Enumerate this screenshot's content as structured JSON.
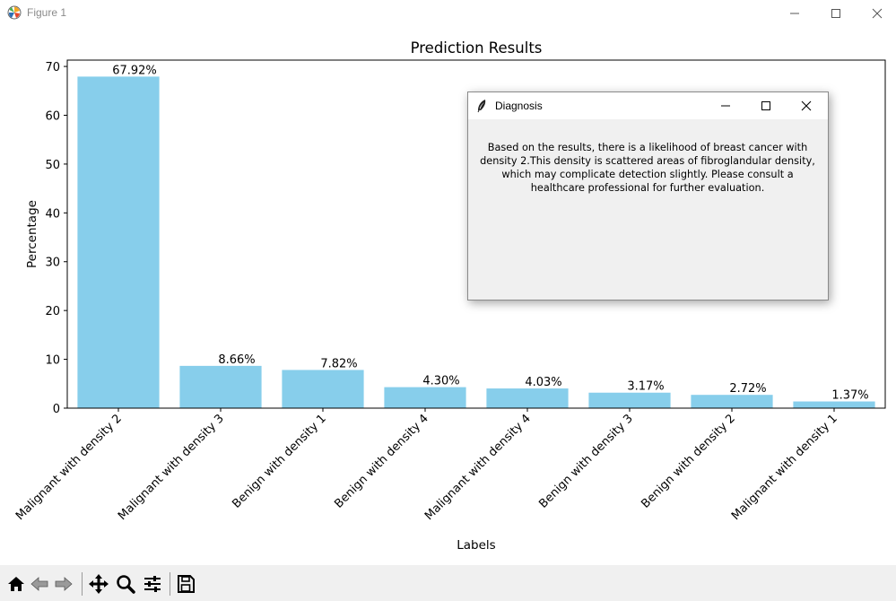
{
  "window": {
    "title": "Figure 1"
  },
  "chart_data": {
    "type": "bar",
    "title": "Prediction Results",
    "xlabel": "Labels",
    "ylabel": "Percentage",
    "categories": [
      "Malignant with density 2",
      "Malignant with density 3",
      "Benign with density 1",
      "Benign with density 4",
      "Malignant with density 4",
      "Benign with density 3",
      "Benign with density 2",
      "Malignant with density 1"
    ],
    "values": [
      67.92,
      8.66,
      7.82,
      4.3,
      4.03,
      3.17,
      2.72,
      1.37
    ],
    "value_labels": [
      "67.92%",
      "8.66%",
      "7.82%",
      "4.30%",
      "4.03%",
      "3.17%",
      "2.72%",
      "1.37%"
    ],
    "ylim": [
      0,
      71.3
    ],
    "yticks": [
      0,
      10,
      20,
      30,
      40,
      50,
      60,
      70
    ],
    "grid": false,
    "bar_color": "#87ceeb"
  },
  "dialog": {
    "title": "Diagnosis",
    "message": "Based on the results, there is a likelihood of breast cancer with density 2.This density is scattered areas of fibroglandular density, which may complicate detection slightly. Please consult a healthcare professional for further evaluation."
  },
  "toolbar": {
    "buttons": [
      "home-icon",
      "back-arrow-icon",
      "forward-arrow-icon",
      "pan-icon",
      "zoom-icon",
      "configure-subplots-icon",
      "save-icon"
    ]
  }
}
